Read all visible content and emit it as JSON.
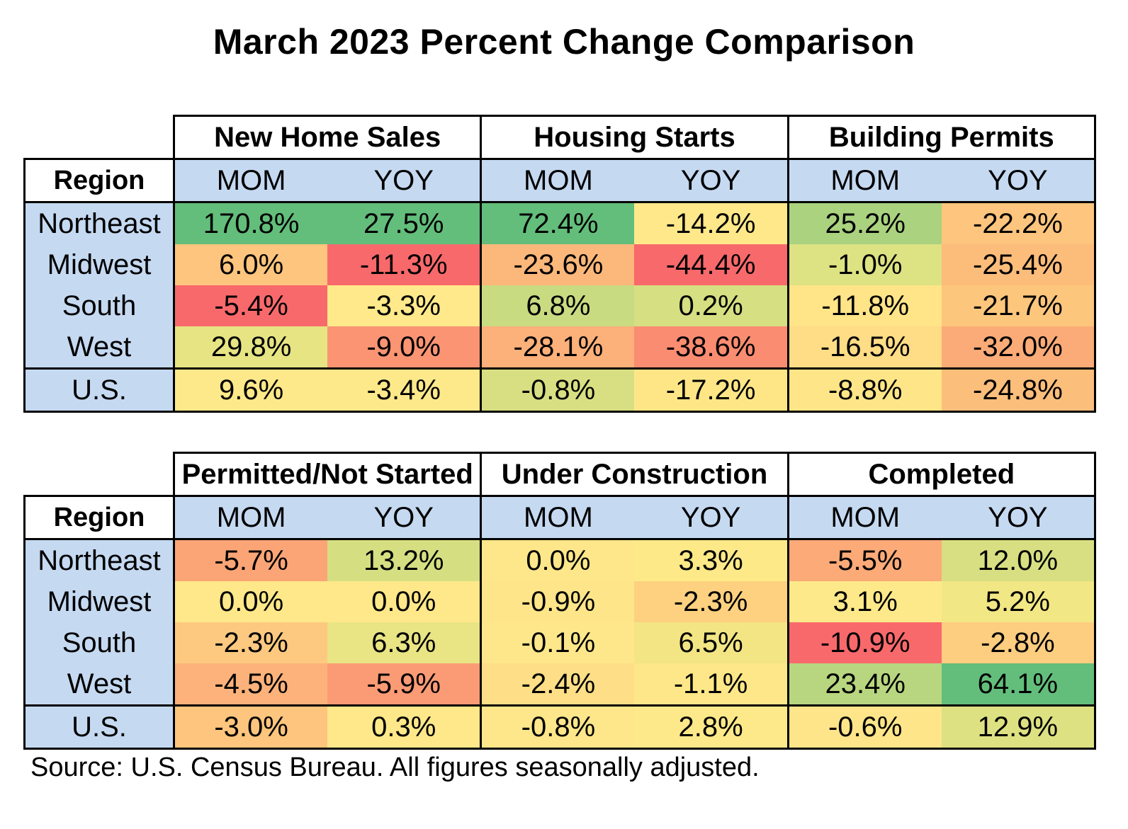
{
  "title": "March 2023 Percent Change Comparison",
  "source": "Source:  U.S. Census Bureau.  All figures seasonally adjusted.",
  "region_label": "Region",
  "sub_labels": {
    "mom": "MOM",
    "yoy": "YOY"
  },
  "regions": [
    "Northeast",
    "Midwest",
    "South",
    "West",
    "U.S."
  ],
  "tables": [
    {
      "groups": [
        "New Home Sales",
        "Housing Starts",
        "Building Permits"
      ],
      "rows": [
        {
          "cells": [
            "170.8%",
            "27.5%",
            "72.4%",
            "-14.2%",
            "25.2%",
            "-22.2%"
          ]
        },
        {
          "cells": [
            "6.0%",
            "-11.3%",
            "-23.6%",
            "-44.4%",
            "-1.0%",
            "-25.4%"
          ]
        },
        {
          "cells": [
            "-5.4%",
            "-3.3%",
            "6.8%",
            "0.2%",
            "-11.8%",
            "-21.7%"
          ]
        },
        {
          "cells": [
            "29.8%",
            "-9.0%",
            "-28.1%",
            "-38.6%",
            "-16.5%",
            "-32.0%"
          ]
        },
        {
          "cells": [
            "9.6%",
            "-3.4%",
            "-0.8%",
            "-17.2%",
            "-8.8%",
            "-24.8%"
          ]
        }
      ],
      "colors": [
        [
          "#63be7b",
          "#63be7b",
          "#63be7b",
          "#ffe88a",
          "#aad27f",
          "#fdc57d"
        ],
        [
          "#fdc57d",
          "#f8696b",
          "#fcb77a",
          "#f8696b",
          "#dde282",
          "#fcbd7b"
        ],
        [
          "#f8696b",
          "#ffe98a",
          "#c9db81",
          "#d6df82",
          "#ffe488",
          "#fdc67d"
        ],
        [
          "#e6e483",
          "#fa9473",
          "#fcb07a",
          "#fa8c71",
          "#ffdc86",
          "#fbab77"
        ],
        [
          "#fee98a",
          "#fee98a",
          "#d8df82",
          "#fee686",
          "#fee587",
          "#fcbe7b"
        ]
      ]
    },
    {
      "groups": [
        "Permitted/Not Started",
        "Under Construction",
        "Completed"
      ],
      "rows": [
        {
          "cells": [
            "-5.7%",
            "13.2%",
            "0.0%",
            "3.3%",
            "-5.5%",
            "12.0%"
          ]
        },
        {
          "cells": [
            "0.0%",
            "0.0%",
            "-0.9%",
            "-2.3%",
            "3.1%",
            "5.2%"
          ]
        },
        {
          "cells": [
            "-2.3%",
            "6.3%",
            "-0.1%",
            "6.5%",
            "-10.9%",
            "-2.8%"
          ]
        },
        {
          "cells": [
            "-4.5%",
            "-5.9%",
            "-2.4%",
            "-1.1%",
            "23.4%",
            "64.1%"
          ]
        },
        {
          "cells": [
            "-3.0%",
            "0.3%",
            "-0.8%",
            "2.8%",
            "-0.6%",
            "12.9%"
          ]
        }
      ],
      "colors": [
        [
          "#fba577",
          "#d5df82",
          "#fee78a",
          "#fde988",
          "#fbaa78",
          "#d8df82"
        ],
        [
          "#fee88a",
          "#fee88a",
          "#fee589",
          "#fdd180",
          "#fee98a",
          "#f2e785"
        ],
        [
          "#fdc980",
          "#e9e484",
          "#fee78a",
          "#f3e584",
          "#f8696b",
          "#fdcd80"
        ],
        [
          "#fcb27a",
          "#fb9b75",
          "#fede86",
          "#fee788",
          "#b8d680",
          "#63be7b"
        ],
        [
          "#fdc57d",
          "#fee88a",
          "#fee68a",
          "#fee98a",
          "#fee589",
          "#dde182"
        ]
      ]
    }
  ]
}
